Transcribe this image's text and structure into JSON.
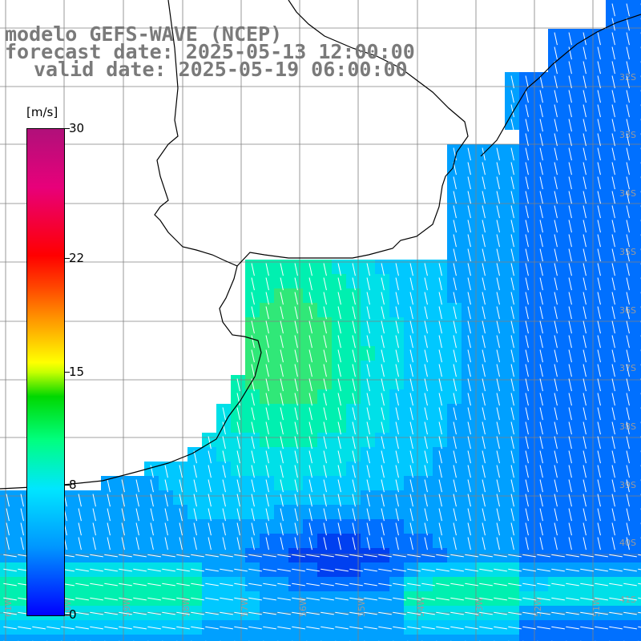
{
  "title": {
    "line1": "modelo GEFS-WAVE (NCEP)",
    "line2": "forecast date: 2025-05-13 12:00:00",
    "line3": "valid date: 2025-05-19 06:00:00"
  },
  "colorbar": {
    "unit": "[m/s]",
    "ticks": [
      {
        "label": "30",
        "value": 30
      },
      {
        "label": "22",
        "value": 22
      },
      {
        "label": "15",
        "value": 15
      },
      {
        "label": "8",
        "value": 8
      },
      {
        "label": "0",
        "value": 0
      }
    ],
    "colors": [
      "#0000ff",
      "#0096ff",
      "#00e6ff",
      "#00ff80",
      "#00d800",
      "#ffff00",
      "#ffa000",
      "#ff0000",
      "#b0107a"
    ]
  },
  "map": {
    "variable": "wind speed",
    "land_color": "#ffffff",
    "coast_color": "#000000",
    "grid_color": "#808080",
    "lat_labels": [
      "32S",
      "33S",
      "34S",
      "35S",
      "36S",
      "37S",
      "38S",
      "39S",
      "40S",
      "41S"
    ],
    "lon_labels": [
      "61W",
      "60W",
      "59W",
      "58W",
      "57W",
      "56W",
      "55W",
      "54W",
      "53W",
      "52W",
      "51W"
    ],
    "wind_direction": "from north-east toward south-west, turning east-west in the south"
  }
}
